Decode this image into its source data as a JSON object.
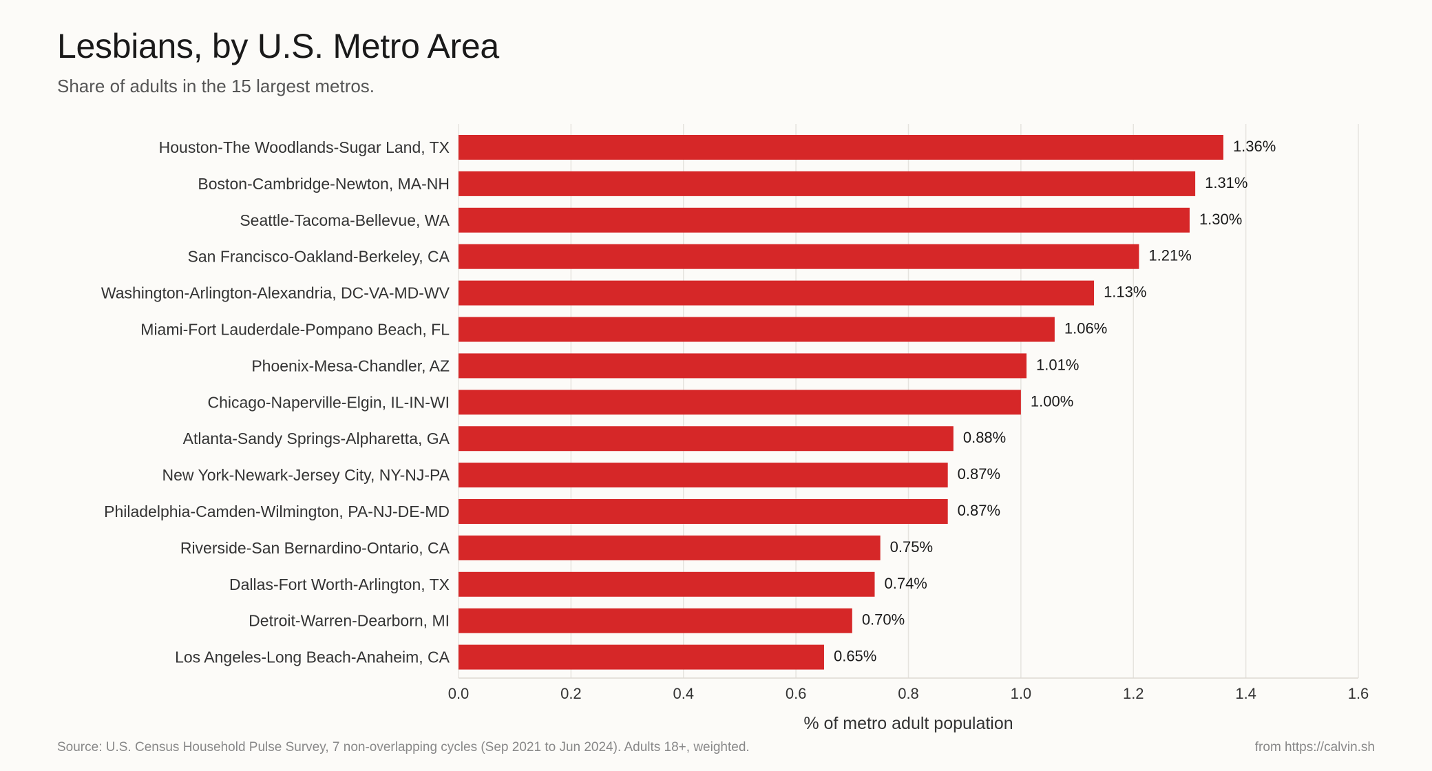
{
  "title": "Lesbians, by U.S. Metro Area",
  "subtitle": "Share of adults in the 15 largest metros.",
  "source": "Source: U.S. Census Household Pulse Survey, 7 non-overlapping cycles (Sep 2021 to Jun 2024). Adults 18+, weighted.",
  "credit": "from https://calvin.sh",
  "chart_data": {
    "type": "bar",
    "orientation": "horizontal",
    "title": "Lesbians, by U.S. Metro Area",
    "subtitle": "Share of adults in the 15 largest metros.",
    "xlabel": "% of metro adult population",
    "ylabel": "",
    "xlim": [
      0,
      1.6
    ],
    "xticks": [
      "0.0",
      "0.2",
      "0.4",
      "0.6",
      "0.8",
      "1.0",
      "1.2",
      "1.4",
      "1.6"
    ],
    "grid": "vertical",
    "bar_color": "#d62728",
    "categories": [
      "Houston-The Woodlands-Sugar Land, TX",
      "Boston-Cambridge-Newton, MA-NH",
      "Seattle-Tacoma-Bellevue, WA",
      "San Francisco-Oakland-Berkeley, CA",
      "Washington-Arlington-Alexandria, DC-VA-MD-WV",
      "Miami-Fort Lauderdale-Pompano Beach, FL",
      "Phoenix-Mesa-Chandler, AZ",
      "Chicago-Naperville-Elgin, IL-IN-WI",
      "Atlanta-Sandy Springs-Alpharetta, GA",
      "New York-Newark-Jersey City, NY-NJ-PA",
      "Philadelphia-Camden-Wilmington, PA-NJ-DE-MD",
      "Riverside-San Bernardino-Ontario, CA",
      "Dallas-Fort Worth-Arlington, TX",
      "Detroit-Warren-Dearborn, MI",
      "Los Angeles-Long Beach-Anaheim, CA"
    ],
    "values": [
      1.36,
      1.31,
      1.3,
      1.21,
      1.13,
      1.06,
      1.01,
      1.0,
      0.88,
      0.87,
      0.87,
      0.75,
      0.74,
      0.7,
      0.65
    ],
    "value_labels": [
      "1.36%",
      "1.31%",
      "1.30%",
      "1.21%",
      "1.13%",
      "1.06%",
      "1.01%",
      "1.00%",
      "0.88%",
      "0.87%",
      "0.87%",
      "0.75%",
      "0.74%",
      "0.70%",
      "0.65%"
    ]
  }
}
